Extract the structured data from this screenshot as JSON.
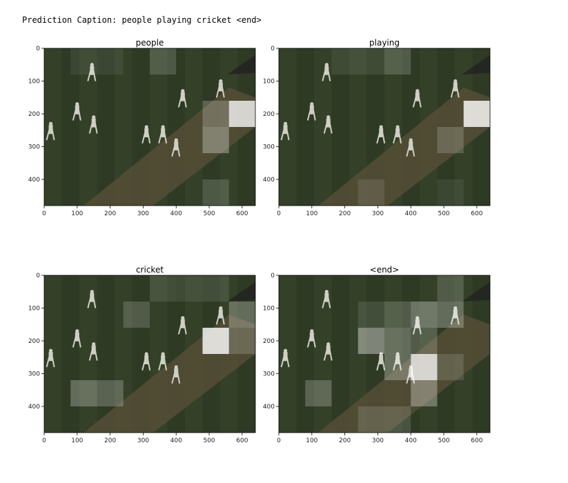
{
  "output": {
    "caption_label": "Prediction Caption:",
    "caption_text": "people playing cricket <end>"
  },
  "colors": {
    "field_dark": "#2e3a24",
    "field_mid": "#3f4f30",
    "pitch": "#5a5038",
    "player": "#cfcfc4",
    "attention": "#ffffff"
  },
  "chart_data": [
    {
      "type": "heatmap",
      "title": "people",
      "xlim": [
        0,
        640
      ],
      "ylim": [
        480,
        0
      ],
      "xticks": [
        0,
        100,
        200,
        300,
        400,
        500,
        600
      ],
      "yticks": [
        0,
        100,
        200,
        300,
        400
      ],
      "grid_cells": [
        8,
        6
      ],
      "attention": [
        {
          "col": 1,
          "row": 0,
          "w": 0.08
        },
        {
          "col": 2,
          "row": 0,
          "w": 0.08
        },
        {
          "col": 4,
          "row": 0,
          "w": 0.18
        },
        {
          "col": 6,
          "row": 2,
          "w": 0.25
        },
        {
          "col": 7,
          "row": 2,
          "w": 0.9
        },
        {
          "col": 6,
          "row": 3,
          "w": 0.35
        },
        {
          "col": 6,
          "row": 5,
          "w": 0.18
        }
      ]
    },
    {
      "type": "heatmap",
      "title": "playing",
      "xlim": [
        0,
        640
      ],
      "ylim": [
        480,
        0
      ],
      "xticks": [
        0,
        100,
        200,
        300,
        400,
        500,
        600
      ],
      "yticks": [
        0,
        100,
        200,
        300,
        400
      ],
      "grid_cells": [
        8,
        6
      ],
      "attention": [
        {
          "col": 2,
          "row": 0,
          "w": 0.1
        },
        {
          "col": 3,
          "row": 0,
          "w": 0.1
        },
        {
          "col": 4,
          "row": 0,
          "w": 0.2
        },
        {
          "col": 7,
          "row": 2,
          "w": 0.95
        },
        {
          "col": 6,
          "row": 3,
          "w": 0.2
        },
        {
          "col": 6,
          "row": 5,
          "w": 0.08
        },
        {
          "col": 3,
          "row": 5,
          "w": 0.12
        }
      ]
    },
    {
      "type": "heatmap",
      "title": "cricket",
      "xlim": [
        0,
        640
      ],
      "ylim": [
        480,
        0
      ],
      "xticks": [
        0,
        100,
        200,
        300,
        400,
        500,
        600
      ],
      "yticks": [
        0,
        100,
        200,
        300,
        400
      ],
      "grid_cells": [
        8,
        6
      ],
      "attention": [
        {
          "col": 4,
          "row": 0,
          "w": 0.12
        },
        {
          "col": 5,
          "row": 0,
          "w": 0.1
        },
        {
          "col": 6,
          "row": 0,
          "w": 0.12
        },
        {
          "col": 3,
          "row": 1,
          "w": 0.2
        },
        {
          "col": 7,
          "row": 1,
          "w": 0.3
        },
        {
          "col": 6,
          "row": 2,
          "w": 0.95
        },
        {
          "col": 7,
          "row": 2,
          "w": 0.2
        },
        {
          "col": 1,
          "row": 4,
          "w": 0.3
        },
        {
          "col": 2,
          "row": 4,
          "w": 0.25
        }
      ]
    },
    {
      "type": "heatmap",
      "title": "<end>",
      "xlim": [
        0,
        640
      ],
      "ylim": [
        480,
        0
      ],
      "xticks": [
        0,
        100,
        200,
        300,
        400,
        500,
        600
      ],
      "yticks": [
        0,
        100,
        200,
        300,
        400
      ],
      "grid_cells": [
        8,
        6
      ],
      "attention": [
        {
          "col": 6,
          "row": 0,
          "w": 0.2
        },
        {
          "col": 3,
          "row": 1,
          "w": 0.12
        },
        {
          "col": 4,
          "row": 1,
          "w": 0.2
        },
        {
          "col": 5,
          "row": 1,
          "w": 0.35
        },
        {
          "col": 6,
          "row": 1,
          "w": 0.3
        },
        {
          "col": 3,
          "row": 2,
          "w": 0.45
        },
        {
          "col": 4,
          "row": 2,
          "w": 0.3
        },
        {
          "col": 5,
          "row": 2,
          "w": 0.2
        },
        {
          "col": 4,
          "row": 3,
          "w": 0.3
        },
        {
          "col": 5,
          "row": 3,
          "w": 0.9
        },
        {
          "col": 6,
          "row": 3,
          "w": 0.15
        },
        {
          "col": 5,
          "row": 4,
          "w": 0.35
        },
        {
          "col": 1,
          "row": 4,
          "w": 0.25
        },
        {
          "col": 3,
          "row": 5,
          "w": 0.15
        },
        {
          "col": 4,
          "row": 5,
          "w": 0.15
        }
      ]
    }
  ]
}
